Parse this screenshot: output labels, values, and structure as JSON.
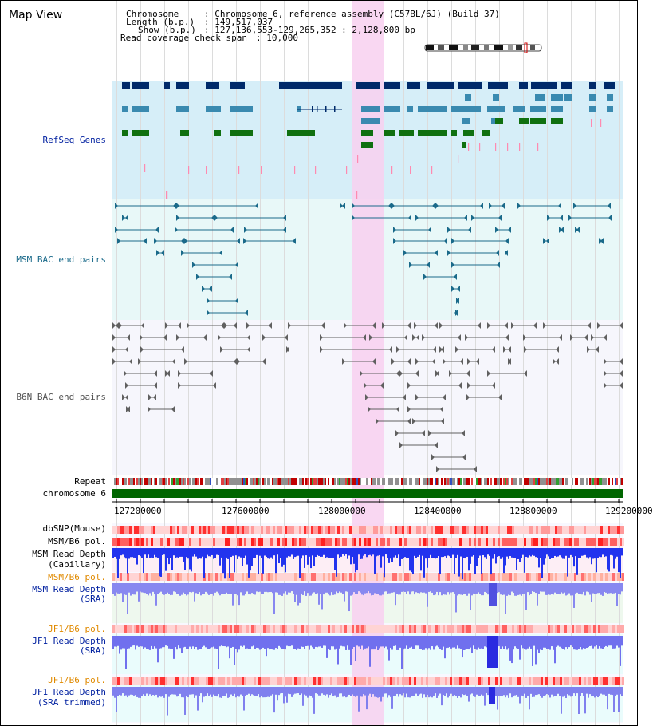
{
  "app": {
    "title": "Map View"
  },
  "header": {
    "chromosome_label": "Chromosome",
    "chromosome_value": ": Chromosome 6, reference assembly (C57BL/6J) (Build 37)",
    "length_label": "Length (b.p.)",
    "length_value": ": 149,517,037",
    "show_label": "Show (b.p.)",
    "show_value": ": 127,136,553-129,265,352 : 2,128,800 bp",
    "coverage_label": "Read coverage check span",
    "coverage_value": ": 10,000"
  },
  "tracks": {
    "refseq": "RefSeq Genes",
    "msm_bac": "MSM BAC end pairs",
    "b6n_bac": "B6N BAC end pairs",
    "repeat": "Repeat",
    "chromosome": "chromosome 6",
    "dbsnp": "dbSNP(Mouse)",
    "msm_b6_pol": "MSM/B6 pol.",
    "msm_depth_cap_1": "MSM Read Depth",
    "msm_depth_cap_2": "(Capillary)",
    "msm_b6_pol_sra": "MSM/B6 pol.",
    "msm_depth_sra_1": "MSM Read Depth",
    "msm_depth_sra_2": "(SRA)",
    "jf1_b6_pol": "JF1/B6 pol.",
    "jf1_depth_1": "JF1 Read Depth",
    "jf1_depth_2": "(SRA)",
    "jf1_b6_pol_2": "JF1/B6 pol.",
    "jf1_depth_trim_1": "JF1 Read Depth",
    "jf1_depth_trim_2": "(SRA trimmed)"
  },
  "axis": {
    "ticks": [
      "127200000",
      "127600000",
      "128000000",
      "128400000",
      "128800000",
      "129200000"
    ]
  },
  "colors": {
    "refseq_bg": "#d6eef8",
    "msm_bg": "#e8f8f8",
    "b6n_bg": "#f6f6fc",
    "highlight": "#f8d0f0",
    "gene_dark": "#002a6a",
    "gene_mid": "#3a8ab0",
    "gene_green": "#107010",
    "bac_msm": "#1a6a8a",
    "bac_b6n": "#606060",
    "chrom_bar": "#006600"
  }
}
